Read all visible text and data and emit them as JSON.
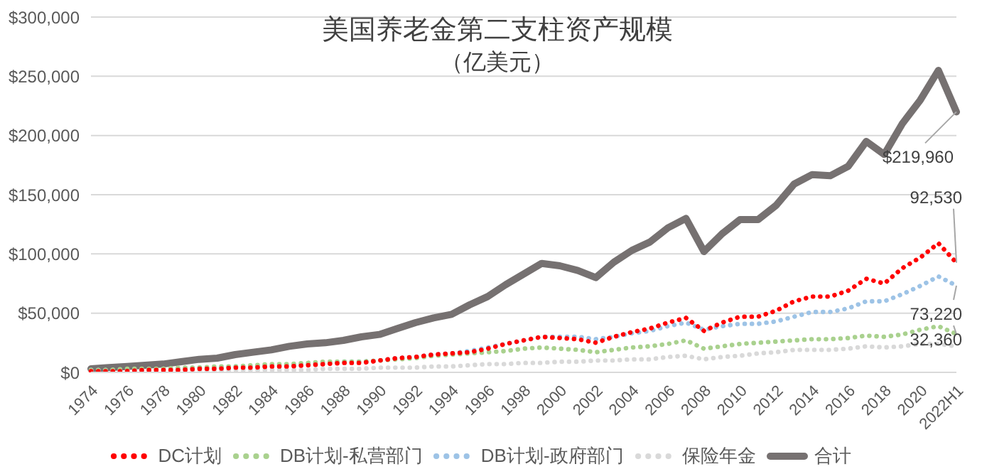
{
  "chart_data": {
    "type": "line",
    "title": "美国养老金第二支柱资产规模",
    "subtitle": "（亿美元）",
    "categories": [
      "1974",
      null,
      "1976",
      null,
      "1978",
      null,
      "1980",
      null,
      "1982",
      null,
      "1984",
      null,
      "1986",
      null,
      "1988",
      null,
      "1990",
      null,
      "1992",
      null,
      "1994",
      null,
      "1996",
      null,
      "1998",
      null,
      "2000",
      null,
      "2002",
      null,
      "2004",
      null,
      "2006",
      null,
      "2008",
      null,
      "2010",
      null,
      "2012",
      null,
      "2014",
      null,
      "2016",
      null,
      "2018",
      null,
      "2020",
      null,
      "2022H1"
    ],
    "series": [
      {
        "name": "DC计划",
        "color": "#ff0000",
        "line_style": "dotted",
        "values": [
          1000,
          1000,
          1000,
          2000,
          2000,
          2000,
          3000,
          3000,
          4000,
          4000,
          5000,
          5000,
          6000,
          7000,
          8000,
          8000,
          10000,
          12000,
          13000,
          15000,
          16000,
          17000,
          20000,
          24000,
          27000,
          30000,
          29000,
          28000,
          25000,
          30000,
          34000,
          37000,
          42000,
          46000,
          35000,
          42000,
          47000,
          47000,
          52000,
          60000,
          64000,
          64000,
          69000,
          79000,
          75000,
          88000,
          97000,
          109000,
          92530
        ]
      },
      {
        "name": "DB计划-私营部门",
        "color": "#a9d18e",
        "line_style": "dotted",
        "values": [
          2000,
          2000,
          3000,
          3000,
          3000,
          4000,
          4000,
          5000,
          5000,
          6000,
          7000,
          7000,
          8000,
          9000,
          9000,
          9000,
          10000,
          11000,
          12000,
          14000,
          15000,
          16000,
          17000,
          18000,
          20000,
          21000,
          20000,
          19000,
          17000,
          19000,
          21000,
          22000,
          24000,
          27000,
          20000,
          22000,
          24000,
          25000,
          26000,
          27000,
          28000,
          28000,
          29000,
          31000,
          30000,
          32000,
          36000,
          39000,
          32360
        ]
      },
      {
        "name": "DB计划-政府部门",
        "color": "#9dc3e6",
        "line_style": "dotted",
        "values": [
          2000,
          2000,
          2000,
          2000,
          3000,
          3000,
          4000,
          4000,
          5000,
          5000,
          6000,
          6000,
          7000,
          8000,
          9000,
          9000,
          10000,
          12000,
          13000,
          15000,
          16000,
          18000,
          21000,
          24000,
          27000,
          30000,
          30000,
          30000,
          28000,
          30000,
          33000,
          35000,
          39000,
          42000,
          36000,
          39000,
          41000,
          41000,
          43000,
          47000,
          51000,
          51000,
          54000,
          60000,
          60000,
          66000,
          73000,
          81000,
          73220
        ]
      },
      {
        "name": "保险年金",
        "color": "#d9d9d9",
        "line_style": "dotted",
        "values": [
          1000,
          1000,
          1000,
          1000,
          1000,
          1000,
          1000,
          1000,
          2000,
          2000,
          2000,
          2000,
          2000,
          3000,
          3000,
          3000,
          4000,
          4000,
          4000,
          5000,
          5000,
          6000,
          7000,
          7000,
          8000,
          8000,
          9000,
          9000,
          10000,
          10000,
          11000,
          11000,
          13000,
          14000,
          11000,
          13000,
          14000,
          16000,
          17000,
          19000,
          19000,
          19000,
          20000,
          22000,
          21000,
          22000,
          24000,
          24000,
          22000
        ]
      },
      {
        "name": "合计",
        "color": "#767171",
        "line_style": "solid",
        "values": [
          3000,
          4000,
          5000,
          6000,
          7000,
          9000,
          11000,
          12000,
          15000,
          17000,
          19000,
          22000,
          24000,
          25000,
          27000,
          30000,
          32000,
          37000,
          42000,
          46000,
          49000,
          57000,
          64000,
          74000,
          83000,
          92000,
          90000,
          86000,
          80000,
          93000,
          103000,
          110000,
          122000,
          130000,
          102000,
          117000,
          129000,
          129000,
          141000,
          159000,
          167000,
          166000,
          174000,
          195000,
          184000,
          210000,
          230000,
          255000,
          219960
        ]
      }
    ],
    "ylim": [
      0,
      300000
    ],
    "yticks": [
      {
        "value": 0,
        "label": "$0"
      },
      {
        "value": 50000,
        "label": "$50,000"
      },
      {
        "value": 100000,
        "label": "$100,000"
      },
      {
        "value": 150000,
        "label": "$150,000"
      },
      {
        "value": 200000,
        "label": "$200,000"
      },
      {
        "value": 250000,
        "label": "$250,000"
      },
      {
        "value": 300000,
        "label": "$300,000"
      }
    ],
    "grid": "y",
    "legend": "bottom",
    "marker": "none",
    "annotations": [
      {
        "text": "$219,960",
        "x": "2022H1",
        "y": 219960
      },
      {
        "text": "92,530",
        "x": "2022H1",
        "y": 92530
      },
      {
        "text": "73,220",
        "x": "2022H1",
        "y": 73220
      },
      {
        "text": "32,360",
        "x": "2022H1",
        "y": 32360
      }
    ]
  }
}
